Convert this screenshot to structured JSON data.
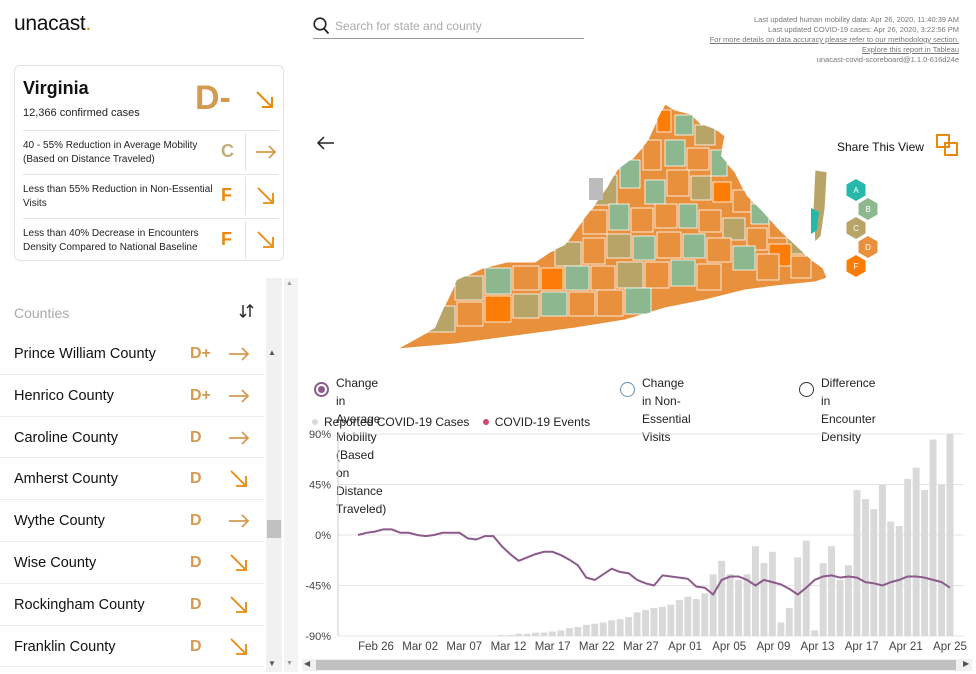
{
  "brand": {
    "name": "unacast",
    "dot": "."
  },
  "search": {
    "placeholder": "Search for state and county",
    "value": ""
  },
  "meta": {
    "line1": "Last updated human mobility data: Apr 26, 2020, 11:40:39 AM",
    "line2": "Last updated COVID-19 cases: Apr 26, 2020, 3:22:56 PM",
    "line3": "For more details on data accuracy please refer to our methodology section.",
    "line4": "Explore this report in Tableau",
    "line5": "unacast-covid-scoreboard@1.1.0-616d24e"
  },
  "colors": {
    "A": "#26b8a8",
    "B": "#8db88f",
    "C": "#b9a468",
    "D": "#e8903c",
    "F": "#fb7d07",
    "gradeD": "#d39a51",
    "gradeC": "#c4ad7c",
    "gradeF": "#e8890c",
    "mobility_line": "#8c5a8c",
    "bars": "#d9d9d9",
    "events": "#d6456b"
  },
  "state": {
    "name": "Virginia",
    "cases": "12,366 confirmed cases",
    "grade": "D-",
    "trend": "down",
    "metrics": [
      {
        "label": "40 - 55% Reduction in Average Mobility (Based on Distance Traveled)",
        "grade": "C",
        "trend": "flat"
      },
      {
        "label": "Less than 55% Reduction in Non-Essential Visits",
        "grade": "F",
        "trend": "down"
      },
      {
        "label": "Less than 40% Decrease in Encounters Density Compared to National Baseline",
        "grade": "F",
        "trend": "down"
      }
    ]
  },
  "counties": {
    "title": "Counties",
    "items": [
      {
        "name": "Prince William County",
        "grade": "D+",
        "trend": "flat"
      },
      {
        "name": "Henrico County",
        "grade": "D+",
        "trend": "flat"
      },
      {
        "name": "Caroline County",
        "grade": "D",
        "trend": "flat"
      },
      {
        "name": "Amherst County",
        "grade": "D",
        "trend": "down"
      },
      {
        "name": "Wythe County",
        "grade": "D",
        "trend": "flat"
      },
      {
        "name": "Wise County",
        "grade": "D",
        "trend": "down"
      },
      {
        "name": "Rockingham County",
        "grade": "D",
        "trend": "down"
      },
      {
        "name": "Franklin County",
        "grade": "D",
        "trend": "down"
      }
    ]
  },
  "share": {
    "label": "Share This View"
  },
  "grade_legend": [
    "A",
    "B",
    "C",
    "D",
    "F"
  ],
  "metric_toggles": [
    {
      "label_line1": "Change in Average Mobility (Based on Distance",
      "label_line2": "Traveled)",
      "selected": true
    },
    {
      "label_line1": "Change in Non-Essential",
      "label_line2": "Visits",
      "selected": false
    },
    {
      "label_line1": "Difference in Encounter",
      "label_line2": "Density",
      "selected": false
    }
  ],
  "series_legend": {
    "cases": "Reported COVID-19 Cases",
    "events": "COVID-19 Events"
  },
  "chart_data": {
    "type": "bar",
    "ytick_labels": [
      "90%",
      "45%",
      "0%",
      "-45%",
      "-90%"
    ],
    "yticks": [
      90,
      45,
      0,
      -45,
      -90
    ],
    "ylim": [
      -90,
      90
    ],
    "xtick_labels": [
      "Feb 26",
      "Mar 02",
      "Mar 07",
      "Mar 12",
      "Mar 17",
      "Mar 22",
      "Mar 27",
      "Apr 01",
      "Apr 05",
      "Apr 09",
      "Apr 13",
      "Apr 17",
      "Apr 21",
      "Apr 25"
    ],
    "series": [
      {
        "name": "Reported COVID-19 Cases",
        "type": "bar",
        "values": [
          -90,
          -90,
          -90,
          -90,
          -90,
          -90,
          -90,
          -90,
          -90,
          -90,
          -90,
          -90,
          -90,
          -90,
          -90,
          -90,
          -90,
          -89,
          -89,
          -88,
          -88,
          -87,
          -87,
          -86,
          -85,
          -83,
          -82,
          -80,
          -79,
          -78,
          -76,
          -75,
          -73,
          -69,
          -67,
          -65,
          -64,
          -62,
          -58,
          -55,
          -57,
          -52,
          -35,
          -23,
          -35,
          -40,
          -35,
          -10,
          -25,
          -15,
          -78,
          -65,
          -20,
          -5,
          -85,
          -25,
          -10,
          -40,
          -27,
          40,
          32,
          23,
          45,
          12,
          8,
          50,
          60,
          40,
          85,
          45,
          90
        ]
      },
      {
        "name": "Change in Average Mobility",
        "type": "line",
        "values": [
          0,
          2,
          3,
          5,
          5,
          2,
          2,
          0,
          -1,
          0,
          2,
          2,
          2,
          -3,
          -4,
          -1,
          -1,
          -10,
          -17,
          -23,
          -20,
          -17,
          -15,
          -15,
          -18,
          -22,
          -27,
          -38,
          -40,
          -35,
          -30,
          -33,
          -34,
          -40,
          -43,
          -45,
          -36,
          -37,
          -38,
          -39,
          -46,
          -47,
          -53,
          -40,
          -37,
          -37,
          -40,
          -45,
          -40,
          -42,
          -44,
          -48,
          -53,
          -47,
          -40,
          -37,
          -36,
          -38,
          -37,
          -38,
          -42,
          -43,
          -45,
          -42,
          -40,
          -37,
          -37,
          -38,
          -40,
          -42,
          -47
        ]
      }
    ]
  }
}
